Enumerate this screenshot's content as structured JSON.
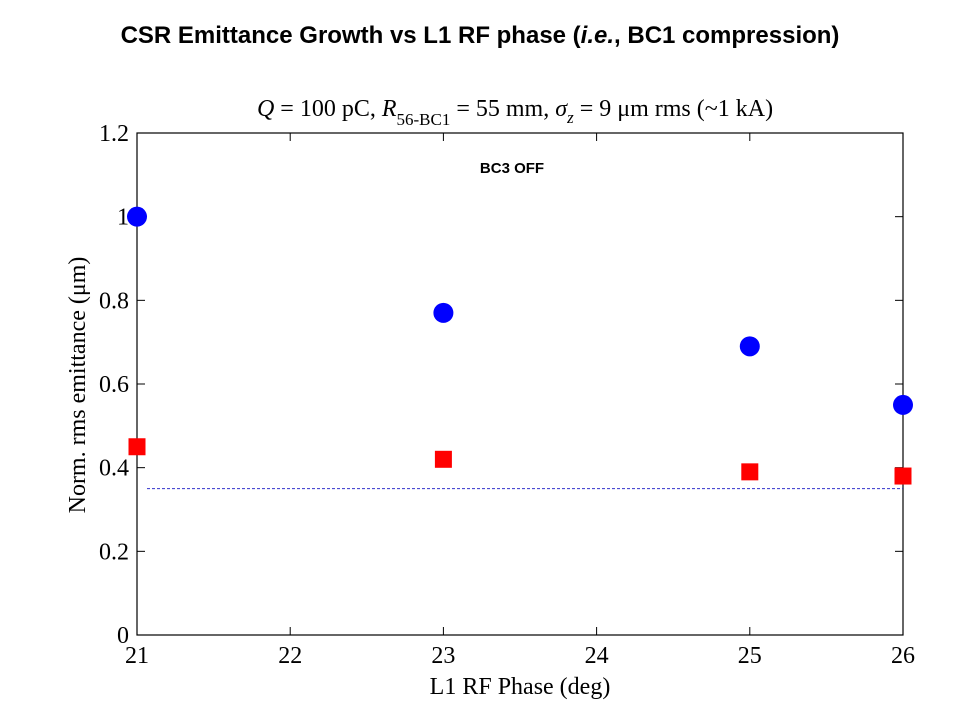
{
  "slide": {
    "title_pre": "CSR Emittance Growth vs L1 RF phase (",
    "title_ie": "i.e.",
    "title_post": ", BC1 compression)"
  },
  "chart_data": {
    "type": "scatter",
    "title": {
      "q_sym": "Q",
      "q_text": " = 100 pC, ",
      "r_sym": "R",
      "r_sub": "56-BC1",
      "mid_text": " = 55 mm, ",
      "sigma_sym": "σ",
      "sigma_sub": "z",
      "end_text": " = 9 μm rms (~1 kA)"
    },
    "annotation": "BC3 OFF",
    "xlabel": "L1 RF Phase (deg)",
    "ylabel": "Norm. rms emittance (μm)",
    "xlim": [
      21,
      26
    ],
    "ylim": [
      0,
      1.2
    ],
    "xticks": [
      21,
      22,
      23,
      24,
      25,
      26
    ],
    "xtick_labels": [
      "21",
      "22",
      "23",
      "24",
      "25",
      "26"
    ],
    "yticks": [
      0,
      0.2,
      0.4,
      0.6,
      0.8,
      1,
      1.2
    ],
    "ytick_labels": [
      "0",
      "0.2",
      "0.4",
      "0.6",
      "0.8",
      "1",
      "1.2"
    ],
    "grid": false,
    "reference_line": {
      "y": 0.35,
      "color": "#3333cc",
      "style": "dotted"
    },
    "series": [
      {
        "marker": "circle",
        "color": "#0000ff",
        "x": [
          21,
          23,
          25,
          26
        ],
        "y": [
          1.0,
          0.77,
          0.69,
          0.55
        ]
      },
      {
        "marker": "square",
        "color": "#ff0000",
        "x": [
          21,
          23,
          25,
          26
        ],
        "y": [
          0.45,
          0.42,
          0.39,
          0.38
        ]
      }
    ]
  }
}
